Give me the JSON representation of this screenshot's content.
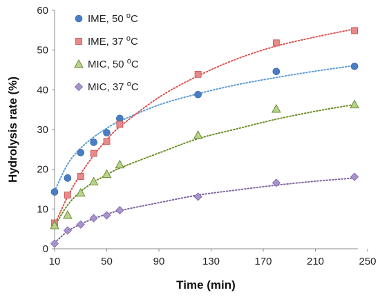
{
  "chart_data": {
    "type": "scatter",
    "xlabel": "Time  (min)",
    "ylabel": "Hydrolysis rate (%)",
    "xlim": [
      10,
      250
    ],
    "ylim": [
      0,
      60
    ],
    "xticks": [
      "10",
      "50",
      "90",
      "130",
      "170",
      "210",
      "250"
    ],
    "yticks": [
      "0",
      "10",
      "20",
      "30",
      "40",
      "50",
      "60"
    ],
    "grid": false,
    "legend_position": "top-left",
    "series": [
      {
        "name": "IME, 50 ",
        "name_sup": "o",
        "name_unit": "C",
        "marker": "circle",
        "color": "#4a7ec4",
        "trend_color": "#5b9bd5",
        "x": [
          10,
          20,
          30,
          40,
          50,
          60,
          120,
          180,
          240
        ],
        "y": [
          14.3,
          17.8,
          24.2,
          26.8,
          29.2,
          32.8,
          38.8,
          44.6,
          45.9
        ],
        "trend": [
          [
            10,
            14.5
          ],
          [
            20,
            21.3
          ],
          [
            30,
            25.3
          ],
          [
            40,
            28.1
          ],
          [
            50,
            30.3
          ],
          [
            60,
            32.1
          ],
          [
            90,
            36.2
          ],
          [
            120,
            39.0
          ],
          [
            150,
            41.3
          ],
          [
            180,
            43.1
          ],
          [
            210,
            44.7
          ],
          [
            240,
            46.1
          ]
        ]
      },
      {
        "name": "IME, 37 ",
        "name_sup": "o",
        "name_unit": "C",
        "marker": "square",
        "color": "#e8898a",
        "edge": "#c05050",
        "trend_color": "#d9534f",
        "x": [
          10,
          20,
          30,
          40,
          50,
          60,
          120,
          180,
          240
        ],
        "y": [
          6.5,
          13.5,
          18.2,
          24.0,
          27.0,
          31.3,
          43.9,
          51.8,
          54.9
        ],
        "trend": [
          [
            10,
            6.0
          ],
          [
            20,
            13.1
          ],
          [
            30,
            18.8
          ],
          [
            40,
            23.5
          ],
          [
            50,
            27.4
          ],
          [
            60,
            30.7
          ],
          [
            90,
            38.1
          ],
          [
            120,
            43.5
          ],
          [
            150,
            47.8
          ],
          [
            180,
            51.0
          ],
          [
            210,
            53.3
          ],
          [
            240,
            55.3
          ]
        ]
      },
      {
        "name": "MIC, 50 ",
        "name_sup": "o",
        "name_unit": "C",
        "marker": "triangle",
        "color": "#b9d48a",
        "edge": "#6a8a3a",
        "trend_color": "#6b8e23",
        "x": [
          10,
          20,
          30,
          40,
          50,
          60,
          120,
          180,
          240
        ],
        "y": [
          5.9,
          8.5,
          14.1,
          16.9,
          18.8,
          21.2,
          28.6,
          35.2,
          36.3
        ],
        "trend": [
          [
            10,
            5.7
          ],
          [
            20,
            11.0
          ],
          [
            30,
            14.4
          ],
          [
            40,
            16.8
          ],
          [
            50,
            18.6
          ],
          [
            60,
            20.3
          ],
          [
            90,
            24.1
          ],
          [
            120,
            27.7
          ],
          [
            150,
            30.2
          ],
          [
            180,
            32.6
          ],
          [
            210,
            34.6
          ],
          [
            240,
            36.3
          ]
        ]
      },
      {
        "name": "MIC, 37 ",
        "name_sup": "o",
        "name_unit": "C",
        "marker": "diamond",
        "color": "#a794cc",
        "edge": "#7a62a8",
        "trend_color": "#8064a2",
        "x": [
          10,
          20,
          30,
          40,
          50,
          60,
          120,
          180,
          240
        ],
        "y": [
          1.3,
          4.6,
          6.1,
          7.7,
          8.4,
          9.7,
          13.1,
          16.6,
          18.1
        ],
        "trend": [
          [
            10,
            1.5
          ],
          [
            20,
            4.4
          ],
          [
            30,
            6.2
          ],
          [
            40,
            7.6
          ],
          [
            50,
            8.7
          ],
          [
            60,
            9.6
          ],
          [
            90,
            11.6
          ],
          [
            120,
            13.5
          ],
          [
            150,
            14.8
          ],
          [
            180,
            16.0
          ],
          [
            210,
            17.0
          ],
          [
            240,
            17.8
          ]
        ]
      }
    ]
  }
}
